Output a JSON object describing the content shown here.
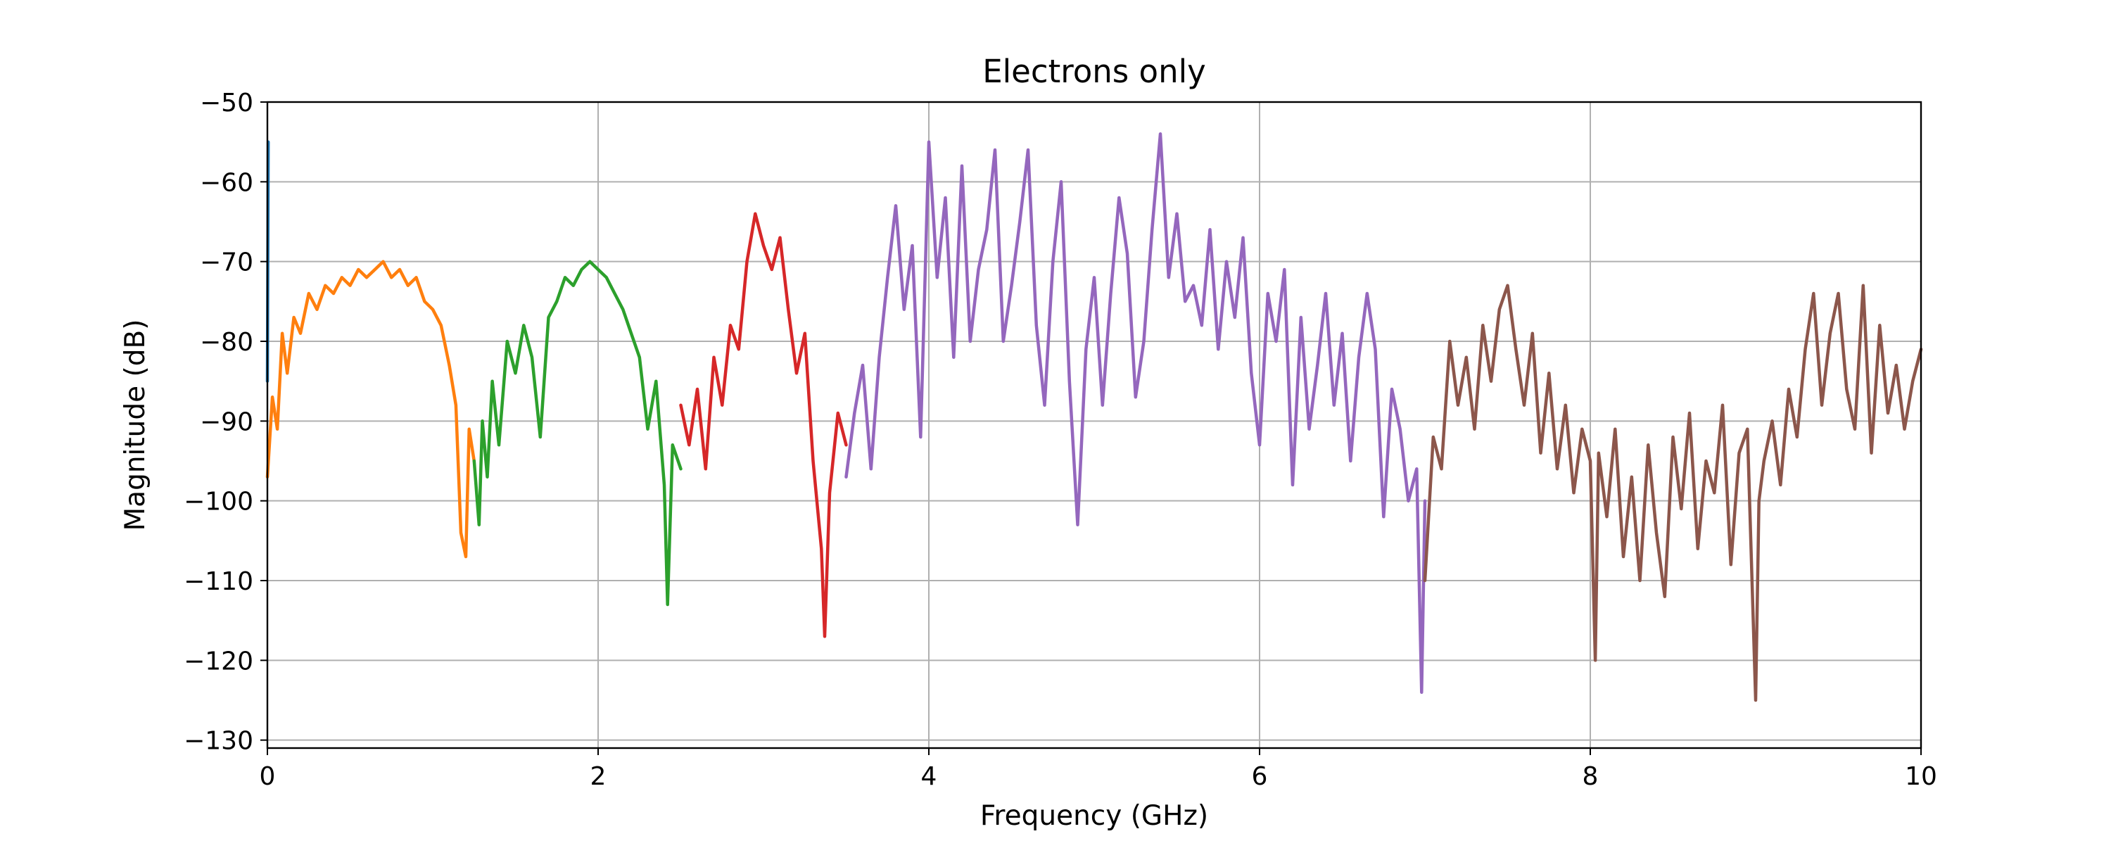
{
  "chart_data": {
    "type": "line",
    "title": "Electrons only",
    "xlabel": "Frequency (GHz)",
    "ylabel": "Magnitude (dB)",
    "xlim": [
      0,
      10
    ],
    "ylim": [
      -131,
      -50
    ],
    "xticks": [
      0,
      2,
      4,
      6,
      8,
      10
    ],
    "xtick_labels": [
      "0",
      "2",
      "4",
      "6",
      "8",
      "10"
    ],
    "yticks": [
      -50,
      -60,
      -70,
      -80,
      -90,
      -100,
      -110,
      -120,
      -130
    ],
    "ytick_labels": [
      "−50",
      "−60",
      "−70",
      "−80",
      "−90",
      "−100",
      "−110",
      "−120",
      "−130"
    ],
    "grid": true,
    "legend": "none",
    "series": [
      {
        "color": "#1f77b4",
        "x": [
          0.0,
          0.005
        ],
        "y": [
          -85,
          -55
        ]
      },
      {
        "color": "#ff7f0e",
        "x": [
          0.0,
          0.03,
          0.06,
          0.09,
          0.12,
          0.16,
          0.2,
          0.25,
          0.3,
          0.35,
          0.4,
          0.45,
          0.5,
          0.55,
          0.6,
          0.65,
          0.7,
          0.75,
          0.8,
          0.85,
          0.9,
          0.95,
          1.0,
          1.05,
          1.1,
          1.14,
          1.17,
          1.2,
          1.22,
          1.25
        ],
        "y": [
          -97,
          -87,
          -91,
          -79,
          -84,
          -77,
          -79,
          -74,
          -76,
          -73,
          -74,
          -72,
          -73,
          -71,
          -72,
          -71,
          -70,
          -72,
          -71,
          -73,
          -72,
          -75,
          -76,
          -78,
          -83,
          -88,
          -104,
          -107,
          -91,
          -95
        ]
      },
      {
        "color": "#2ca02c",
        "x": [
          1.25,
          1.28,
          1.3,
          1.33,
          1.36,
          1.4,
          1.45,
          1.5,
          1.55,
          1.6,
          1.65,
          1.7,
          1.75,
          1.8,
          1.85,
          1.9,
          1.95,
          2.0,
          2.05,
          2.1,
          2.15,
          2.2,
          2.25,
          2.3,
          2.35,
          2.4,
          2.42,
          2.45,
          2.5
        ],
        "y": [
          -95,
          -103,
          -90,
          -97,
          -85,
          -93,
          -80,
          -84,
          -78,
          -82,
          -92,
          -77,
          -75,
          -72,
          -73,
          -71,
          -70,
          -71,
          -72,
          -74,
          -76,
          -79,
          -82,
          -91,
          -85,
          -98,
          -113,
          -93,
          -96
        ]
      },
      {
        "color": "#d62728",
        "x": [
          2.5,
          2.55,
          2.6,
          2.65,
          2.7,
          2.75,
          2.8,
          2.85,
          2.9,
          2.95,
          3.0,
          3.05,
          3.1,
          3.15,
          3.2,
          3.25,
          3.3,
          3.35,
          3.37,
          3.4,
          3.45,
          3.5
        ],
        "y": [
          -88,
          -93,
          -86,
          -96,
          -82,
          -88,
          -78,
          -81,
          -70,
          -64,
          -68,
          -71,
          -67,
          -76,
          -84,
          -79,
          -95,
          -106,
          -117,
          -99,
          -89,
          -93
        ]
      },
      {
        "color": "#9467bd",
        "x": [
          3.5,
          3.55,
          3.6,
          3.65,
          3.7,
          3.75,
          3.8,
          3.85,
          3.9,
          3.95,
          4.0,
          4.05,
          4.1,
          4.15,
          4.2,
          4.25,
          4.3,
          4.35,
          4.4,
          4.45,
          4.5,
          4.55,
          4.6,
          4.65,
          4.7,
          4.75,
          4.8,
          4.85,
          4.9,
          4.95,
          5.0,
          5.05,
          5.1,
          5.15,
          5.2,
          5.25,
          5.3,
          5.35,
          5.4,
          5.45,
          5.5,
          5.55,
          5.6,
          5.65,
          5.7,
          5.75,
          5.8,
          5.85,
          5.9,
          5.95,
          6.0,
          6.05,
          6.1,
          6.15,
          6.2,
          6.25,
          6.3,
          6.35,
          6.4,
          6.45,
          6.5,
          6.55,
          6.6,
          6.65,
          6.7,
          6.75,
          6.8,
          6.85,
          6.9,
          6.95,
          6.98,
          7.0
        ],
        "y": [
          -97,
          -89,
          -83,
          -96,
          -82,
          -72,
          -63,
          -76,
          -68,
          -92,
          -55,
          -72,
          -62,
          -82,
          -58,
          -80,
          -71,
          -66,
          -56,
          -80,
          -73,
          -65,
          -56,
          -78,
          -88,
          -70,
          -60,
          -85,
          -103,
          -81,
          -72,
          -88,
          -74,
          -62,
          -69,
          -87,
          -80,
          -66,
          -54,
          -72,
          -64,
          -75,
          -73,
          -78,
          -66,
          -81,
          -70,
          -77,
          -67,
          -84,
          -93,
          -74,
          -80,
          -71,
          -98,
          -77,
          -91,
          -83,
          -74,
          -88,
          -79,
          -95,
          -82,
          -74,
          -81,
          -102,
          -86,
          -91,
          -100,
          -96,
          -124,
          -100
        ]
      },
      {
        "color": "#8c564b",
        "x": [
          7.0,
          7.05,
          7.1,
          7.15,
          7.2,
          7.25,
          7.3,
          7.35,
          7.4,
          7.45,
          7.5,
          7.55,
          7.6,
          7.65,
          7.7,
          7.75,
          7.8,
          7.85,
          7.9,
          7.95,
          8.0,
          8.03,
          8.05,
          8.1,
          8.15,
          8.2,
          8.25,
          8.3,
          8.35,
          8.4,
          8.45,
          8.5,
          8.55,
          8.6,
          8.65,
          8.7,
          8.75,
          8.8,
          8.85,
          8.9,
          8.95,
          9.0,
          9.02,
          9.05,
          9.1,
          9.15,
          9.2,
          9.25,
          9.3,
          9.35,
          9.4,
          9.45,
          9.5,
          9.55,
          9.6,
          9.65,
          9.7,
          9.75,
          9.8,
          9.85,
          9.9,
          9.95,
          10.0
        ],
        "y": [
          -110,
          -92,
          -96,
          -80,
          -88,
          -82,
          -91,
          -78,
          -85,
          -76,
          -73,
          -81,
          -88,
          -79,
          -94,
          -84,
          -96,
          -88,
          -99,
          -91,
          -95,
          -120,
          -94,
          -102,
          -91,
          -107,
          -97,
          -110,
          -93,
          -104,
          -112,
          -92,
          -101,
          -89,
          -106,
          -95,
          -99,
          -88,
          -108,
          -94,
          -91,
          -125,
          -100,
          -95,
          -90,
          -98,
          -86,
          -92,
          -81,
          -74,
          -88,
          -79,
          -74,
          -86,
          -91,
          -73,
          -94,
          -78,
          -89,
          -83,
          -91,
          -85,
          -81
        ]
      }
    ]
  }
}
